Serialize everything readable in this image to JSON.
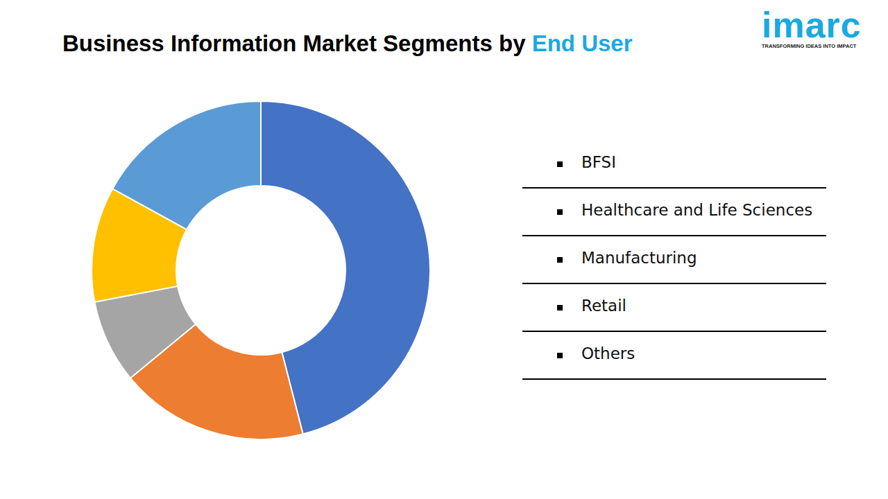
{
  "chart_data": {
    "type": "doughnut",
    "title": "Business Information Market Segments by End User",
    "categories": [
      "BFSI",
      "Healthcare and Life Sciences",
      "Manufacturing",
      "Retail",
      "Others"
    ],
    "values": [
      46,
      18,
      8,
      11,
      17
    ],
    "colors": [
      "#4472c4",
      "#ed7d31",
      "#a5a5a5",
      "#ffc000",
      "#5b9bd5"
    ],
    "legend": "right"
  },
  "logo": {
    "name": "imarc",
    "tagline": "TRANSFORMING IDEAS INTO IMPACT"
  }
}
